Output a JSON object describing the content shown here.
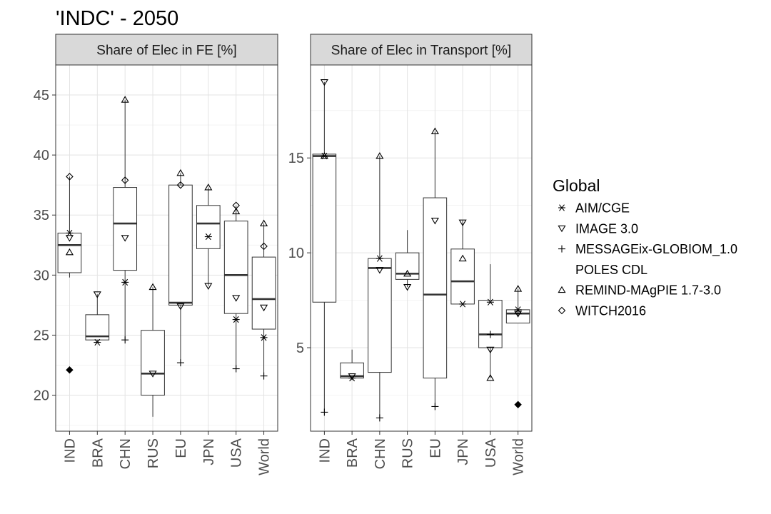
{
  "title": "'INDC' - 2050",
  "legend": {
    "title": "Global",
    "entries": [
      {
        "label": "AIM/CGE",
        "shape": "asterisk"
      },
      {
        "label": "IMAGE 3.0",
        "shape": "triangle-down"
      },
      {
        "label": "MESSAGEix-GLOBIOM_1.0",
        "shape": "plus"
      },
      {
        "label": "POLES CDL",
        "shape": "none"
      },
      {
        "label": "REMIND-MAgPIE 1.7-3.0",
        "shape": "triangle-up"
      },
      {
        "label": "WITCH2016",
        "shape": "diamond"
      }
    ]
  },
  "chart_data": [
    {
      "type": "box",
      "panel": "Share of Elec in FE [%]",
      "categories": [
        "IND",
        "BRA",
        "CHN",
        "RUS",
        "EU",
        "JPN",
        "USA",
        "World"
      ],
      "ylim": [
        17,
        47.5
      ],
      "yticks": [
        20,
        25,
        30,
        35,
        40,
        45
      ],
      "grid": true,
      "boxes": [
        {
          "lower_whisker": 29.8,
          "q1": 30.2,
          "median": 32.5,
          "q3": 33.5,
          "upper_whisker": 38.2,
          "outliers": [
            22.1
          ]
        },
        {
          "lower_whisker": 24.4,
          "q1": 24.6,
          "median": 24.9,
          "q3": 26.7,
          "upper_whisker": 28.4,
          "outliers": []
        },
        {
          "lower_whisker": 24.6,
          "q1": 30.4,
          "median": 34.3,
          "q3": 37.3,
          "upper_whisker": 44.6,
          "outliers": []
        },
        {
          "lower_whisker": 18.2,
          "q1": 20.0,
          "median": 21.8,
          "q3": 25.4,
          "upper_whisker": 29.0,
          "outliers": []
        },
        {
          "lower_whisker": 22.7,
          "q1": 27.5,
          "median": 27.7,
          "q3": 37.5,
          "upper_whisker": 38.5,
          "outliers": []
        },
        {
          "lower_whisker": 29.1,
          "q1": 32.2,
          "median": 34.3,
          "q3": 35.8,
          "upper_whisker": 37.3,
          "outliers": []
        },
        {
          "lower_whisker": 22.2,
          "q1": 26.8,
          "median": 30.0,
          "q3": 34.5,
          "upper_whisker": 35.8,
          "outliers": []
        },
        {
          "lower_whisker": 21.6,
          "q1": 25.5,
          "median": 28.0,
          "q3": 31.5,
          "upper_whisker": 34.3,
          "outliers": []
        }
      ],
      "points": [
        {
          "category": "IND",
          "model": "AIM/CGE",
          "value": 33.5
        },
        {
          "category": "IND",
          "model": "IMAGE 3.0",
          "value": 33.1
        },
        {
          "category": "IND",
          "model": "REMIND-MAgPIE 1.7-3.0",
          "value": 31.9
        },
        {
          "category": "IND",
          "model": "WITCH2016",
          "value": 38.2
        },
        {
          "category": "BRA",
          "model": "AIM/CGE",
          "value": 24.4
        },
        {
          "category": "BRA",
          "model": "IMAGE 3.0",
          "value": 28.4
        },
        {
          "category": "CHN",
          "model": "AIM/CGE",
          "value": 29.4
        },
        {
          "category": "CHN",
          "model": "IMAGE 3.0",
          "value": 33.1
        },
        {
          "category": "CHN",
          "model": "MESSAGEix-GLOBIOM_1.0",
          "value": 24.6
        },
        {
          "category": "CHN",
          "model": "REMIND-MAgPIE 1.7-3.0",
          "value": 44.6
        },
        {
          "category": "CHN",
          "model": "WITCH2016",
          "value": 37.9
        },
        {
          "category": "RUS",
          "model": "IMAGE 3.0",
          "value": 21.8
        },
        {
          "category": "RUS",
          "model": "REMIND-MAgPIE 1.7-3.0",
          "value": 29.0
        },
        {
          "category": "EU",
          "model": "IMAGE 3.0",
          "value": 27.4
        },
        {
          "category": "EU",
          "model": "MESSAGEix-GLOBIOM_1.0",
          "value": 22.7
        },
        {
          "category": "EU",
          "model": "REMIND-MAgPIE 1.7-3.0",
          "value": 38.5
        },
        {
          "category": "EU",
          "model": "WITCH2016",
          "value": 37.5
        },
        {
          "category": "JPN",
          "model": "AIM/CGE",
          "value": 33.2
        },
        {
          "category": "JPN",
          "model": "IMAGE 3.0",
          "value": 29.1
        },
        {
          "category": "JPN",
          "model": "REMIND-MAgPIE 1.7-3.0",
          "value": 37.3
        },
        {
          "category": "USA",
          "model": "AIM/CGE",
          "value": 26.3
        },
        {
          "category": "USA",
          "model": "IMAGE 3.0",
          "value": 28.1
        },
        {
          "category": "USA",
          "model": "MESSAGEix-GLOBIOM_1.0",
          "value": 22.2
        },
        {
          "category": "USA",
          "model": "REMIND-MAgPIE 1.7-3.0",
          "value": 35.3
        },
        {
          "category": "USA",
          "model": "WITCH2016",
          "value": 35.8
        },
        {
          "category": "World",
          "model": "AIM/CGE",
          "value": 24.8
        },
        {
          "category": "World",
          "model": "IMAGE 3.0",
          "value": 27.3
        },
        {
          "category": "World",
          "model": "MESSAGEix-GLOBIOM_1.0",
          "value": 21.6
        },
        {
          "category": "World",
          "model": "REMIND-MAgPIE 1.7-3.0",
          "value": 34.3
        },
        {
          "category": "World",
          "model": "WITCH2016",
          "value": 32.4
        }
      ]
    },
    {
      "type": "box",
      "panel": "Share of Elec in Transport [%]",
      "categories": [
        "IND",
        "BRA",
        "CHN",
        "RUS",
        "EU",
        "JPN",
        "USA",
        "World"
      ],
      "ylim": [
        0.6,
        19.9
      ],
      "yticks": [
        5,
        10,
        15
      ],
      "grid": true,
      "boxes": [
        {
          "lower_whisker": 1.6,
          "q1": 7.4,
          "median": 15.1,
          "q3": 15.2,
          "upper_whisker": 19.0,
          "outliers": []
        },
        {
          "lower_whisker": 3.3,
          "q1": 3.4,
          "median": 3.5,
          "q3": 4.2,
          "upper_whisker": 4.9,
          "outliers": []
        },
        {
          "lower_whisker": 1.3,
          "q1": 3.7,
          "median": 9.2,
          "q3": 9.7,
          "upper_whisker": 15.1,
          "outliers": []
        },
        {
          "lower_whisker": 8.2,
          "q1": 8.6,
          "median": 8.9,
          "q3": 10.0,
          "upper_whisker": 11.2,
          "outliers": []
        },
        {
          "lower_whisker": 1.9,
          "q1": 3.4,
          "median": 7.8,
          "q3": 12.9,
          "upper_whisker": 16.4,
          "outliers": []
        },
        {
          "lower_whisker": 7.3,
          "q1": 7.3,
          "median": 8.5,
          "q3": 10.2,
          "upper_whisker": 11.7,
          "outliers": []
        },
        {
          "lower_whisker": 3.4,
          "q1": 5.0,
          "median": 5.7,
          "q3": 7.5,
          "upper_whisker": 9.4,
          "outliers": []
        },
        {
          "lower_whisker": 6.3,
          "q1": 6.3,
          "median": 6.8,
          "q3": 7.0,
          "upper_whisker": 8.1,
          "outliers": [
            2.0
          ]
        }
      ],
      "points": [
        {
          "category": "IND",
          "model": "AIM/CGE",
          "value": 15.1
        },
        {
          "category": "IND",
          "model": "IMAGE 3.0",
          "value": 19.0
        },
        {
          "category": "IND",
          "model": "MESSAGEix-GLOBIOM_1.0",
          "value": 1.6
        },
        {
          "category": "IND",
          "model": "REMIND-MAgPIE 1.7-3.0",
          "value": 15.1
        },
        {
          "category": "BRA",
          "model": "AIM/CGE",
          "value": 3.4
        },
        {
          "category": "BRA",
          "model": "IMAGE 3.0",
          "value": 3.5
        },
        {
          "category": "CHN",
          "model": "AIM/CGE",
          "value": 9.7
        },
        {
          "category": "CHN",
          "model": "IMAGE 3.0",
          "value": 9.1
        },
        {
          "category": "CHN",
          "model": "MESSAGEix-GLOBIOM_1.0",
          "value": 1.3
        },
        {
          "category": "CHN",
          "model": "REMIND-MAgPIE 1.7-3.0",
          "value": 15.1
        },
        {
          "category": "RUS",
          "model": "IMAGE 3.0",
          "value": 8.2
        },
        {
          "category": "RUS",
          "model": "REMIND-MAgPIE 1.7-3.0",
          "value": 8.9
        },
        {
          "category": "EU",
          "model": "IMAGE 3.0",
          "value": 11.7
        },
        {
          "category": "EU",
          "model": "MESSAGEix-GLOBIOM_1.0",
          "value": 1.9
        },
        {
          "category": "EU",
          "model": "REMIND-MAgPIE 1.7-3.0",
          "value": 16.4
        },
        {
          "category": "JPN",
          "model": "AIM/CGE",
          "value": 7.3
        },
        {
          "category": "JPN",
          "model": "IMAGE 3.0",
          "value": 11.6
        },
        {
          "category": "JPN",
          "model": "REMIND-MAgPIE 1.7-3.0",
          "value": 9.7
        },
        {
          "category": "USA",
          "model": "AIM/CGE",
          "value": 7.4
        },
        {
          "category": "USA",
          "model": "IMAGE 3.0",
          "value": 4.9
        },
        {
          "category": "USA",
          "model": "MESSAGEix-GLOBIOM_1.0",
          "value": 5.7
        },
        {
          "category": "USA",
          "model": "REMIND-MAgPIE 1.7-3.0",
          "value": 3.4
        },
        {
          "category": "World",
          "model": "AIM/CGE",
          "value": 7.0
        },
        {
          "category": "World",
          "model": "IMAGE 3.0",
          "value": 6.8
        },
        {
          "category": "World",
          "model": "MESSAGEix-GLOBIOM_1.0",
          "value": 6.8
        },
        {
          "category": "World",
          "model": "REMIND-MAgPIE 1.7-3.0",
          "value": 8.1
        }
      ]
    }
  ]
}
